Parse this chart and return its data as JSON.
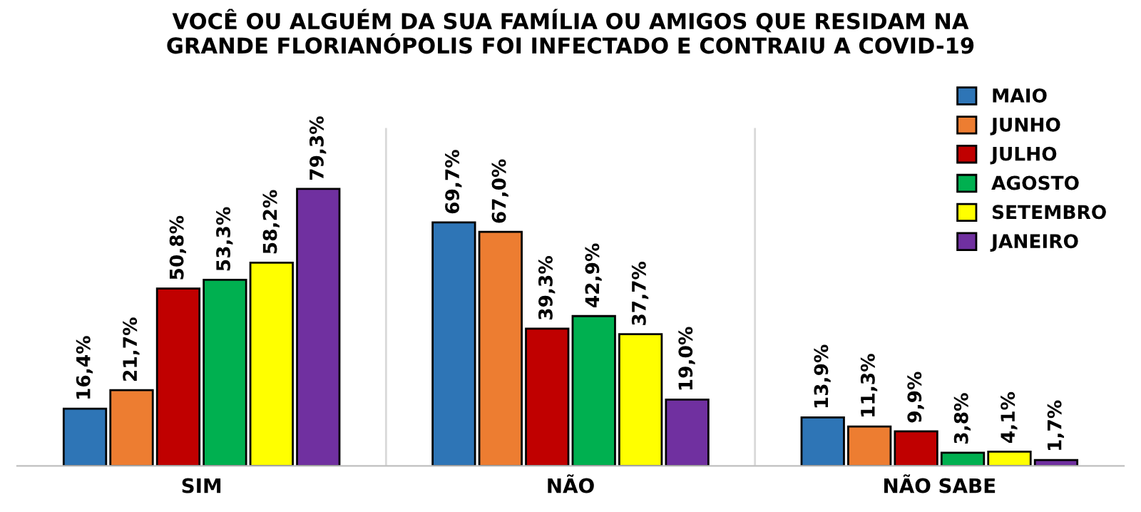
{
  "chart_data": {
    "type": "bar",
    "title": "VOCÊ OU ALGUÉM DA SUA FAMÍLIA OU AMIGOS QUE RESIDAM NA\nGRANDE FLORIANÓPOLIS FOI INFECTADO E CONTRAIU A COVID-19",
    "categories": [
      "SIM",
      "NÃO",
      "NÃO SABE"
    ],
    "series": [
      {
        "name": "MAIO",
        "color": "#2e75b6",
        "values": [
          16.4,
          69.7,
          13.9
        ],
        "value_labels": [
          "16,4%",
          "69,7%",
          "13,9%"
        ]
      },
      {
        "name": "JUNHO",
        "color": "#ed7d31",
        "values": [
          21.7,
          67.0,
          11.3
        ],
        "value_labels": [
          "21,7%",
          "67,0%",
          "11,3%"
        ]
      },
      {
        "name": "JULHO",
        "color": "#c00000",
        "values": [
          50.8,
          39.3,
          9.9
        ],
        "value_labels": [
          "50,8%",
          "39,3%",
          "9,9%"
        ]
      },
      {
        "name": "AGOSTO",
        "color": "#00b050",
        "values": [
          53.3,
          42.9,
          3.8
        ],
        "value_labels": [
          "53,3%",
          "42,9%",
          "3,8%"
        ]
      },
      {
        "name": "SETEMBRO",
        "color": "#ffff00",
        "values": [
          58.2,
          37.7,
          4.1
        ],
        "value_labels": [
          "58,2%",
          "37,7%",
          "4,1%"
        ]
      },
      {
        "name": "JANEIRO",
        "color": "#7030a0",
        "values": [
          79.3,
          19.0,
          1.7
        ],
        "value_labels": [
          "79,3%",
          "19,0%",
          "1,7%"
        ]
      }
    ],
    "legend": "top right",
    "grid": false
  }
}
